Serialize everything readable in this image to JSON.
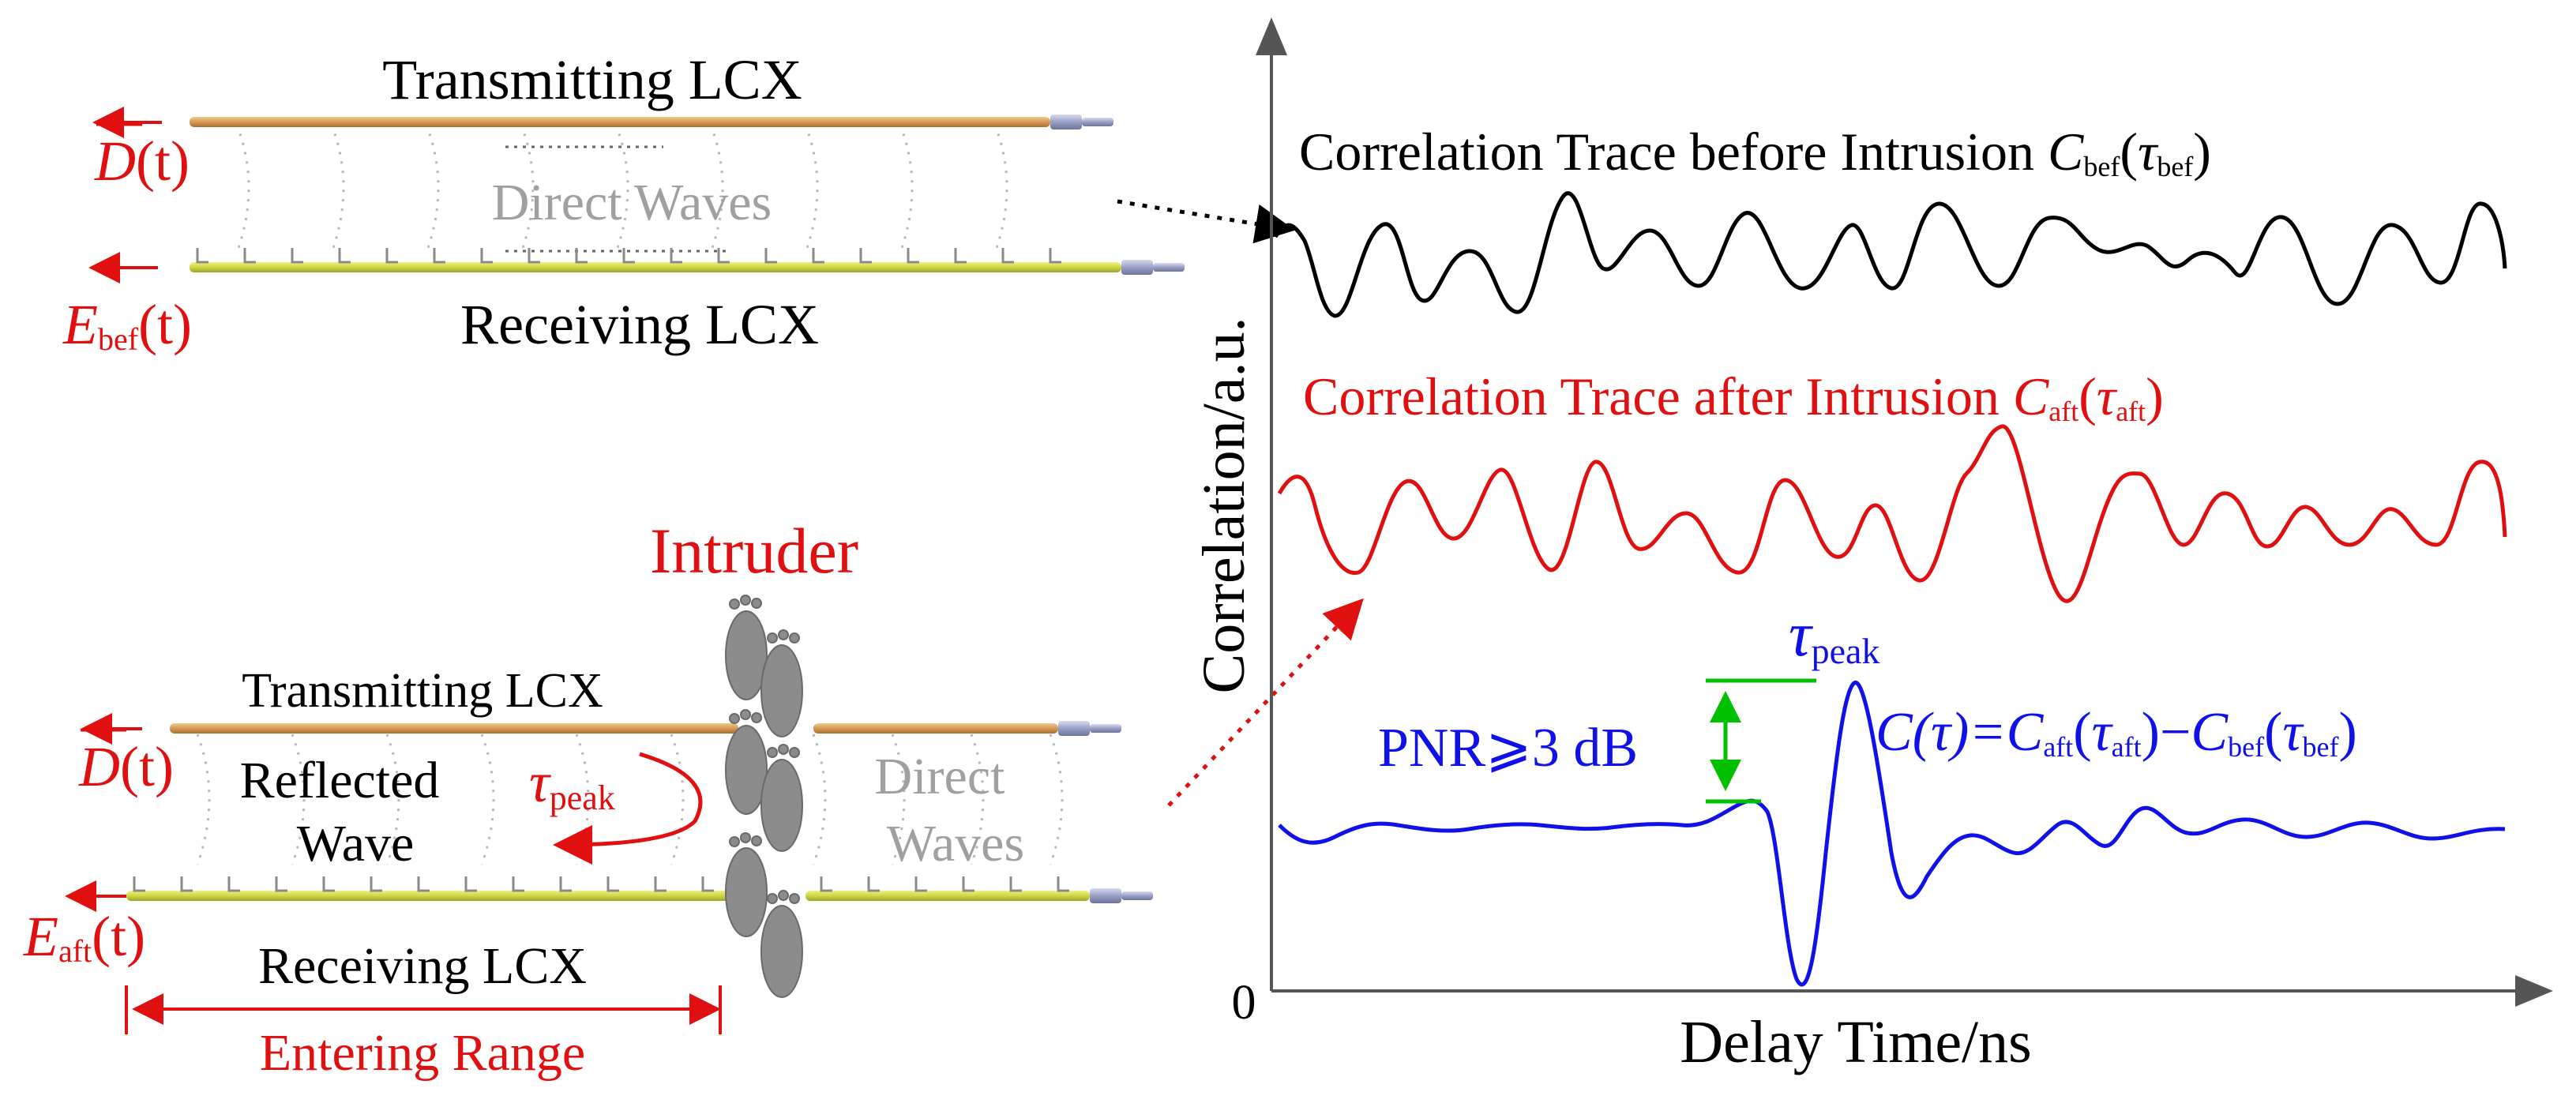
{
  "colors": {
    "black": "#000000",
    "red": "#e01010",
    "gray": "#a0a0a0",
    "blue": "#1010e8",
    "green": "#00c000",
    "tx_cable": "#d9a066",
    "rx_cable": "#d4dc55",
    "connector": "#8a8fb8",
    "foot": "#8c8c8c"
  },
  "top_setup": {
    "tx_label": "Transmitting LCX",
    "rx_label": "Receiving LCX",
    "waves_label": "Direct Waves",
    "input_signal": {
      "base": "D",
      "arg": "(t)"
    },
    "output_signal": {
      "base": "E",
      "sub": "bef",
      "arg": "(t)"
    }
  },
  "bottom_setup": {
    "intruder_label": "Intruder",
    "tx_label": "Transmitting LCX",
    "rx_label": "Receiving LCX",
    "reflected_label_1": "Reflected",
    "reflected_label_2": "Wave",
    "direct_label_1": "Direct",
    "direct_label_2": "Waves",
    "tau_peak": {
      "base": "τ",
      "sub": "peak"
    },
    "input_signal": {
      "base": "D",
      "arg": "(t)"
    },
    "output_signal": {
      "base": "E",
      "sub": "aft",
      "arg": "(t)"
    },
    "range_label": "Entering Range"
  },
  "graph": {
    "ylabel": "Correlation/a.u.",
    "xlabel": "Delay Time/ns",
    "origin_label": "0",
    "trace_before": {
      "prefix": "Correlation Trace before Intrusion ",
      "func": "C",
      "func_sub": "bef",
      "arg": "τ",
      "arg_sub": "bef"
    },
    "trace_after": {
      "prefix": "Correlation Trace after Intrusion ",
      "func": "C",
      "func_sub": "aft",
      "arg": "τ",
      "arg_sub": "aft"
    },
    "difference": {
      "lhs": "C(τ)=",
      "a_func": "C",
      "a_sub": "aft",
      "a_arg": "τ",
      "a_arg_sub": "aft",
      "minus": "−",
      "b_func": "C",
      "b_sub": "bef",
      "b_arg": "τ",
      "b_arg_sub": "bef"
    },
    "pnr_label": "PNR⩾3 dB",
    "tau_peak": {
      "base": "τ",
      "sub": "peak"
    }
  }
}
